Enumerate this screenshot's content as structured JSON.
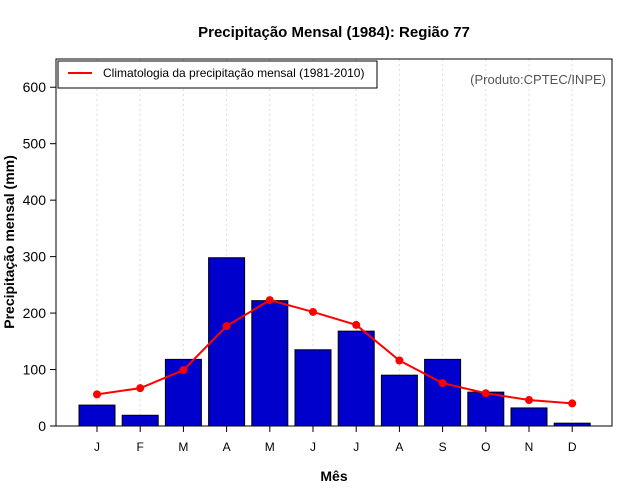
{
  "chart_data": {
    "type": "bar",
    "title": "Precipitação Mensal (1984): Região 77",
    "xlabel": "Mês",
    "ylabel": "Precipitação mensal (mm)",
    "ylim": [
      0,
      650
    ],
    "yticks": [
      0,
      100,
      200,
      300,
      400,
      500,
      600
    ],
    "categories": [
      "J",
      "F",
      "M",
      "A",
      "M",
      "J",
      "J",
      "A",
      "S",
      "O",
      "N",
      "D"
    ],
    "series": [
      {
        "name": "Precipitação mensal (1984)",
        "type": "bar",
        "color": "#0000cc",
        "values": [
          37,
          19,
          118,
          298,
          222,
          135,
          168,
          90,
          118,
          60,
          32,
          5
        ]
      },
      {
        "name": "Climatologia da precipitação mensal (1981-2010)",
        "type": "line",
        "color": "#ff0000",
        "values": [
          56,
          67,
          99,
          177,
          223,
          202,
          179,
          116,
          76,
          58,
          46,
          40
        ]
      }
    ],
    "legend": {
      "position": "top-left",
      "entries": [
        "Climatologia da precipitação mensal (1981-2010)"
      ]
    },
    "annotation": "(Produto:CPTEC/INPE)",
    "grid": "vertical dotted"
  }
}
